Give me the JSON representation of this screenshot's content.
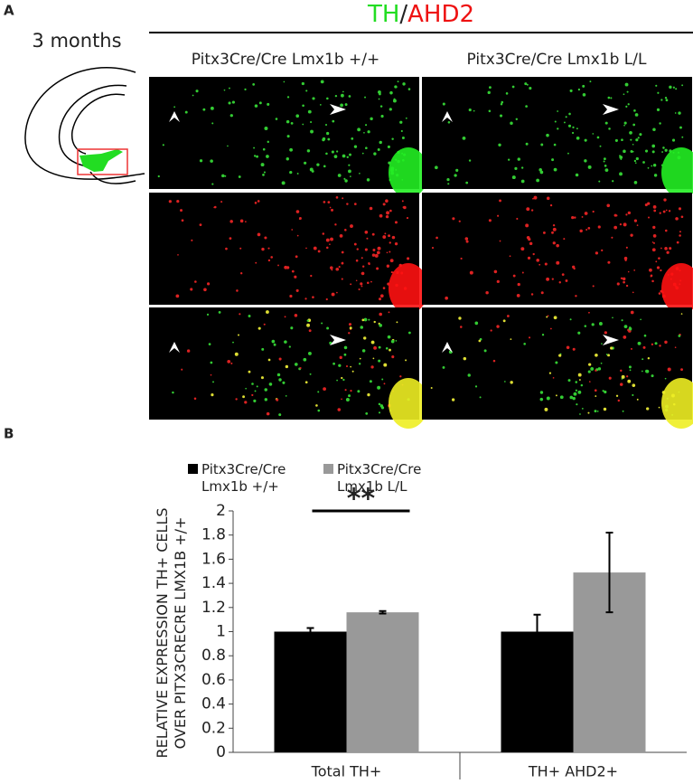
{
  "panel_a": {
    "label": "A",
    "title_parts": [
      "TH",
      "/",
      "AHD2"
    ],
    "age": "3 months",
    "columns": [
      "Pitx3Cre/Cre Lmx1b +/+",
      "Pitx3Cre/Cre Lmx1b L/L"
    ]
  },
  "panel_b": {
    "label": "B"
  },
  "chart_data": {
    "type": "bar",
    "ylabel": [
      "RELATIVE EXPRESSION TH+ CELLS",
      "OVER PITX3CRECRE LMX1B +/+"
    ],
    "categories": [
      "Total TH+",
      "TH+ AHD2+"
    ],
    "series": [
      {
        "name": "Pitx3Cre/Cre Lmx1b +/+",
        "color": "#000000",
        "values": [
          1,
          1
        ],
        "errors": [
          0.03,
          0.14
        ]
      },
      {
        "name": "Pitx3Cre/Cre Lmx1b L/L",
        "color": "#999999",
        "values": [
          1.16,
          1.49
        ],
        "errors": [
          0.01,
          0.33
        ]
      }
    ],
    "ylim": [
      0,
      2
    ],
    "yticks": [
      0,
      0.2,
      0.4,
      0.6,
      0.8,
      1,
      1.2,
      1.4,
      1.6,
      1.8,
      2
    ],
    "significance": "**"
  }
}
